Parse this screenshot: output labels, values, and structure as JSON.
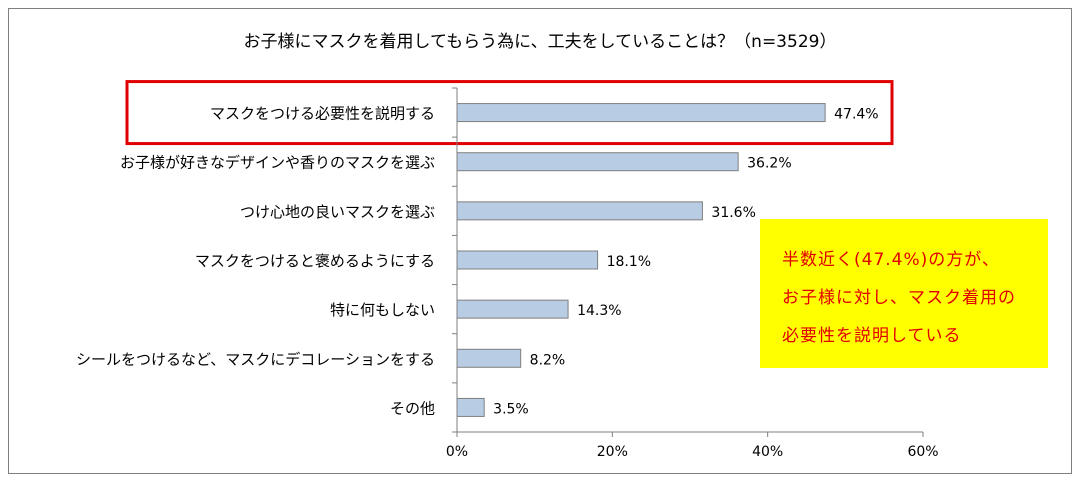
{
  "chart_data": {
    "type": "bar",
    "orientation": "horizontal",
    "title": "お子様にマスクを着用してもらう為に、工夫をしていることは？（n=3529）",
    "categories": [
      "マスクをつける必要性を説明する",
      "お子様が好きなデザインや香りのマスクを選ぶ",
      "つけ心地の良いマスクを選ぶ",
      "マスクをつけると褒めるようにする",
      "特に何もしない",
      "シールをつけるなど、マスクにデコレーションをする",
      "その他"
    ],
    "values": [
      47.4,
      36.2,
      31.6,
      18.1,
      14.3,
      8.2,
      3.5
    ],
    "value_labels": [
      "47.4%",
      "36.2%",
      "31.6%",
      "18.1%",
      "14.3%",
      "8.2%",
      "3.5%"
    ],
    "xlim": [
      0,
      60
    ],
    "xticks": [
      0,
      20,
      40,
      60
    ],
    "xtick_labels": [
      "0%",
      "20%",
      "40%",
      "60%"
    ],
    "grid": false,
    "highlighted_category_index": 0,
    "colors": {
      "bar_fill": "#b8cce4",
      "bar_stroke": "#7f7f7f",
      "highlight_box": "#e00000",
      "callout_bg": "#ffff00",
      "callout_text": "#e00000"
    }
  },
  "callout": {
    "lines": [
      "半数近く(47.4%)の方が、",
      "お子様に対し、マスク着用の",
      "必要性を説明している"
    ]
  }
}
